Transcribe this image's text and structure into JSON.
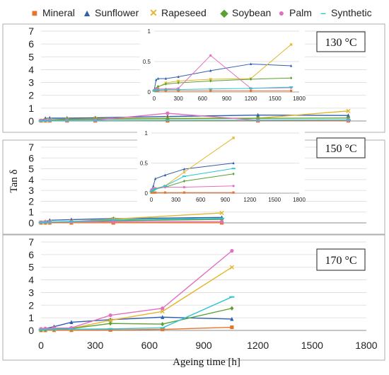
{
  "chart_data": {
    "type": "line",
    "ylabel": "Tan δ",
    "xlabel": "Ageing time [h]",
    "legend_position": "top",
    "series_styles": [
      {
        "name": "Mineral",
        "color": "#e8732a",
        "marker": "square"
      },
      {
        "name": "Sunflower",
        "color": "#2f5fad",
        "marker": "triangle"
      },
      {
        "name": "Rapeseed",
        "color": "#e3b62b",
        "marker": "cross"
      },
      {
        "name": "Soybean",
        "color": "#5aa032",
        "marker": "diamond"
      },
      {
        "name": "Palm",
        "color": "#e36fc0",
        "marker": "circle"
      },
      {
        "name": "Synthetic",
        "color": "#2ec4d4",
        "marker": "dash"
      }
    ],
    "x_ticks": [
      "0",
      "300",
      "600",
      "900",
      "1200",
      "1500",
      "1800"
    ],
    "y_ticks": [
      "0",
      "1",
      "2",
      "3",
      "4",
      "5",
      "6",
      "7"
    ],
    "xlim": [
      0,
      1800
    ],
    "ylim": [
      0,
      7
    ],
    "panels": [
      {
        "label": "130 °C",
        "series": [
          {
            "name": "Mineral",
            "x": [
              0,
              24,
              48,
              144,
              300,
              700,
              1200,
              1700
            ],
            "y": [
              0.02,
              0.02,
              0.02,
              0.02,
              0.02,
              0.02,
              0.02,
              0.02
            ]
          },
          {
            "name": "Sunflower",
            "x": [
              0,
              24,
              48,
              144,
              300,
              700,
              1200,
              1700
            ],
            "y": [
              0.03,
              0.2,
              0.22,
              0.22,
              0.25,
              0.35,
              0.46,
              0.43
            ]
          },
          {
            "name": "Rapeseed",
            "x": [
              0,
              24,
              48,
              144,
              300,
              700,
              1200,
              1700
            ],
            "y": [
              0.03,
              0.05,
              0.08,
              0.15,
              0.18,
              0.21,
              0.22,
              0.78
            ]
          },
          {
            "name": "Soybean",
            "x": [
              0,
              24,
              48,
              144,
              300,
              700,
              1200,
              1700
            ],
            "y": [
              0.03,
              0.06,
              0.09,
              0.13,
              0.15,
              0.18,
              0.21,
              0.23
            ]
          },
          {
            "name": "Palm",
            "x": [
              0,
              24,
              48,
              144,
              300,
              700,
              1200,
              1700
            ],
            "y": [
              0.03,
              0.05,
              0.05,
              0.05,
              0.06,
              0.6,
              0.06,
              0.07
            ]
          },
          {
            "name": "Synthetic",
            "x": [
              0,
              24,
              48,
              144,
              300,
              700,
              1200,
              1700
            ],
            "y": [
              0.02,
              0.03,
              0.03,
              0.04,
              0.04,
              0.05,
              0.06,
              0.08
            ]
          }
        ],
        "inset": {
          "ylim": [
            0,
            1
          ],
          "xlim": [
            0,
            1800
          ],
          "y_ticks": [
            "0",
            "0.5",
            "1"
          ],
          "x_ticks": [
            "0",
            "300",
            "600",
            "900",
            "1200",
            "1500",
            "1800"
          ]
        }
      },
      {
        "label": "150 °C",
        "series": [
          {
            "name": "Mineral",
            "x": [
              0,
              24,
              48,
              168,
              400,
              1000
            ],
            "y": [
              0.01,
              0.01,
              0.01,
              0.01,
              0.01,
              0.01
            ]
          },
          {
            "name": "Sunflower",
            "x": [
              0,
              24,
              48,
              168,
              400,
              1000
            ],
            "y": [
              0.05,
              0.12,
              0.24,
              0.3,
              0.4,
              0.5
            ]
          },
          {
            "name": "Rapeseed",
            "x": [
              0,
              24,
              48,
              168,
              400,
              1000
            ],
            "y": [
              0.04,
              0.06,
              0.08,
              0.12,
              0.35,
              0.92
            ]
          },
          {
            "name": "Soybean",
            "x": [
              0,
              24,
              48,
              168,
              400,
              1000
            ],
            "y": [
              0.03,
              0.05,
              0.07,
              0.1,
              0.2,
              0.32
            ]
          },
          {
            "name": "Palm",
            "x": [
              0,
              24,
              48,
              168,
              400,
              1000
            ],
            "y": [
              0.06,
              0.08,
              0.08,
              0.1,
              0.1,
              0.12
            ]
          },
          {
            "name": "Synthetic",
            "x": [
              0,
              24,
              48,
              168,
              400,
              1000
            ],
            "y": [
              0.03,
              0.05,
              0.07,
              0.12,
              0.28,
              0.41
            ]
          }
        ],
        "inset": {
          "ylim": [
            0,
            1
          ],
          "xlim": [
            0,
            1800
          ],
          "y_ticks": [
            "0",
            "0.5",
            "1"
          ],
          "x_ticks": [
            "0",
            "300",
            "600",
            "900",
            "1200",
            "1500",
            "1800"
          ]
        }
      },
      {
        "label": "170 °C",
        "series": [
          {
            "name": "Mineral",
            "x": [
              0,
              24,
              72,
              168,
              384,
              672,
              1056
            ],
            "y": [
              0.01,
              0.01,
              0.02,
              0.02,
              0.04,
              0.08,
              0.25
            ]
          },
          {
            "name": "Sunflower",
            "x": [
              0,
              24,
              72,
              168,
              384,
              672,
              1056
            ],
            "y": [
              0.05,
              0.15,
              0.3,
              0.65,
              0.85,
              1.05,
              0.9
            ]
          },
          {
            "name": "Rapeseed",
            "x": [
              0,
              24,
              72,
              168,
              384,
              672,
              1056
            ],
            "y": [
              0.05,
              0.08,
              0.1,
              0.15,
              0.8,
              1.5,
              5.0
            ]
          },
          {
            "name": "Soybean",
            "x": [
              0,
              24,
              72,
              168,
              384,
              672,
              1056
            ],
            "y": [
              0.04,
              0.06,
              0.1,
              0.15,
              0.55,
              0.5,
              1.75
            ]
          },
          {
            "name": "Palm",
            "x": [
              0,
              24,
              72,
              168,
              384,
              672,
              1056
            ],
            "y": [
              0.12,
              0.15,
              0.18,
              0.2,
              1.2,
              1.75,
              6.3
            ]
          },
          {
            "name": "Synthetic",
            "x": [
              0,
              24,
              72,
              168,
              384,
              672,
              1056
            ],
            "y": [
              0.04,
              0.06,
              0.08,
              0.1,
              0.12,
              0.2,
              2.65
            ]
          }
        ]
      }
    ]
  }
}
